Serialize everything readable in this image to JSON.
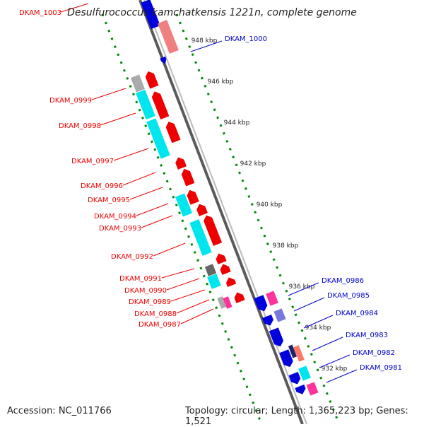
{
  "title": "Desulfurococcus kamchatkensis 1221n, complete genome",
  "footer": {
    "accession": "Accession: NC_011766",
    "topology": "Topology: circular; Length: 1,365,223 bp; Genes: 1,521"
  },
  "ruler": {
    "ticks": [
      {
        "label": "948 kbp",
        "t": 0.055
      },
      {
        "label": "946 kbp",
        "t": 0.155
      },
      {
        "label": "944 kbp",
        "t": 0.255
      },
      {
        "label": "942 kbp",
        "t": 0.355
      },
      {
        "label": "940 kbp",
        "t": 0.455
      },
      {
        "label": "938 kbp",
        "t": 0.555
      },
      {
        "label": "936 kbp",
        "t": 0.655
      },
      {
        "label": "934 kbp",
        "t": 0.755
      },
      {
        "label": "932 kbp",
        "t": 0.855
      }
    ]
  },
  "genes": [
    {
      "name": "DKAM_1003",
      "strand": "left",
      "color": "#ee0000"
    },
    {
      "name": "DKAM_1000",
      "strand": "right",
      "color": "#0000cc"
    },
    {
      "name": "DKAM_0999",
      "strand": "left",
      "color": "#ee0000"
    },
    {
      "name": "DKAM_0998",
      "strand": "left",
      "color": "#ee0000"
    },
    {
      "name": "DKAM_0997",
      "strand": "left",
      "color": "#ee0000"
    },
    {
      "name": "DKAM_0996",
      "strand": "left",
      "color": "#ee0000"
    },
    {
      "name": "DKAM_0995",
      "strand": "left",
      "color": "#ee0000"
    },
    {
      "name": "DKAM_0994",
      "strand": "left",
      "color": "#ee0000"
    },
    {
      "name": "DKAM_0993",
      "strand": "left",
      "color": "#ee0000"
    },
    {
      "name": "DKAM_0992",
      "strand": "left",
      "color": "#ee0000"
    },
    {
      "name": "DKAM_0991",
      "strand": "left",
      "color": "#ee0000"
    },
    {
      "name": "DKAM_0990",
      "strand": "left",
      "color": "#ee0000"
    },
    {
      "name": "DKAM_0989",
      "strand": "left",
      "color": "#ee0000"
    },
    {
      "name": "DKAM_0988",
      "strand": "left",
      "color": "#ee0000"
    },
    {
      "name": "DKAM_0987",
      "strand": "left",
      "color": "#ee0000"
    },
    {
      "name": "DKAM_0986",
      "strand": "right",
      "color": "#0000cc"
    },
    {
      "name": "DKAM_0985",
      "strand": "right",
      "color": "#0000cc"
    },
    {
      "name": "DKAM_0984",
      "strand": "right",
      "color": "#0000cc"
    },
    {
      "name": "DKAM_0983",
      "strand": "right",
      "color": "#0000cc"
    },
    {
      "name": "DKAM_0982",
      "strand": "right",
      "color": "#0000cc"
    },
    {
      "name": "DKAM_0981",
      "strand": "right",
      "color": "#0000cc"
    }
  ],
  "colors": {
    "forward_gene": "#ee0000",
    "reverse_gene": "#0000dd",
    "cds_cyan": "#00e5ee",
    "cds_magenta": "#ff3399",
    "cds_gray": "#aaaaaa",
    "backbone": "#888888",
    "ruler_dots": "#008800"
  }
}
